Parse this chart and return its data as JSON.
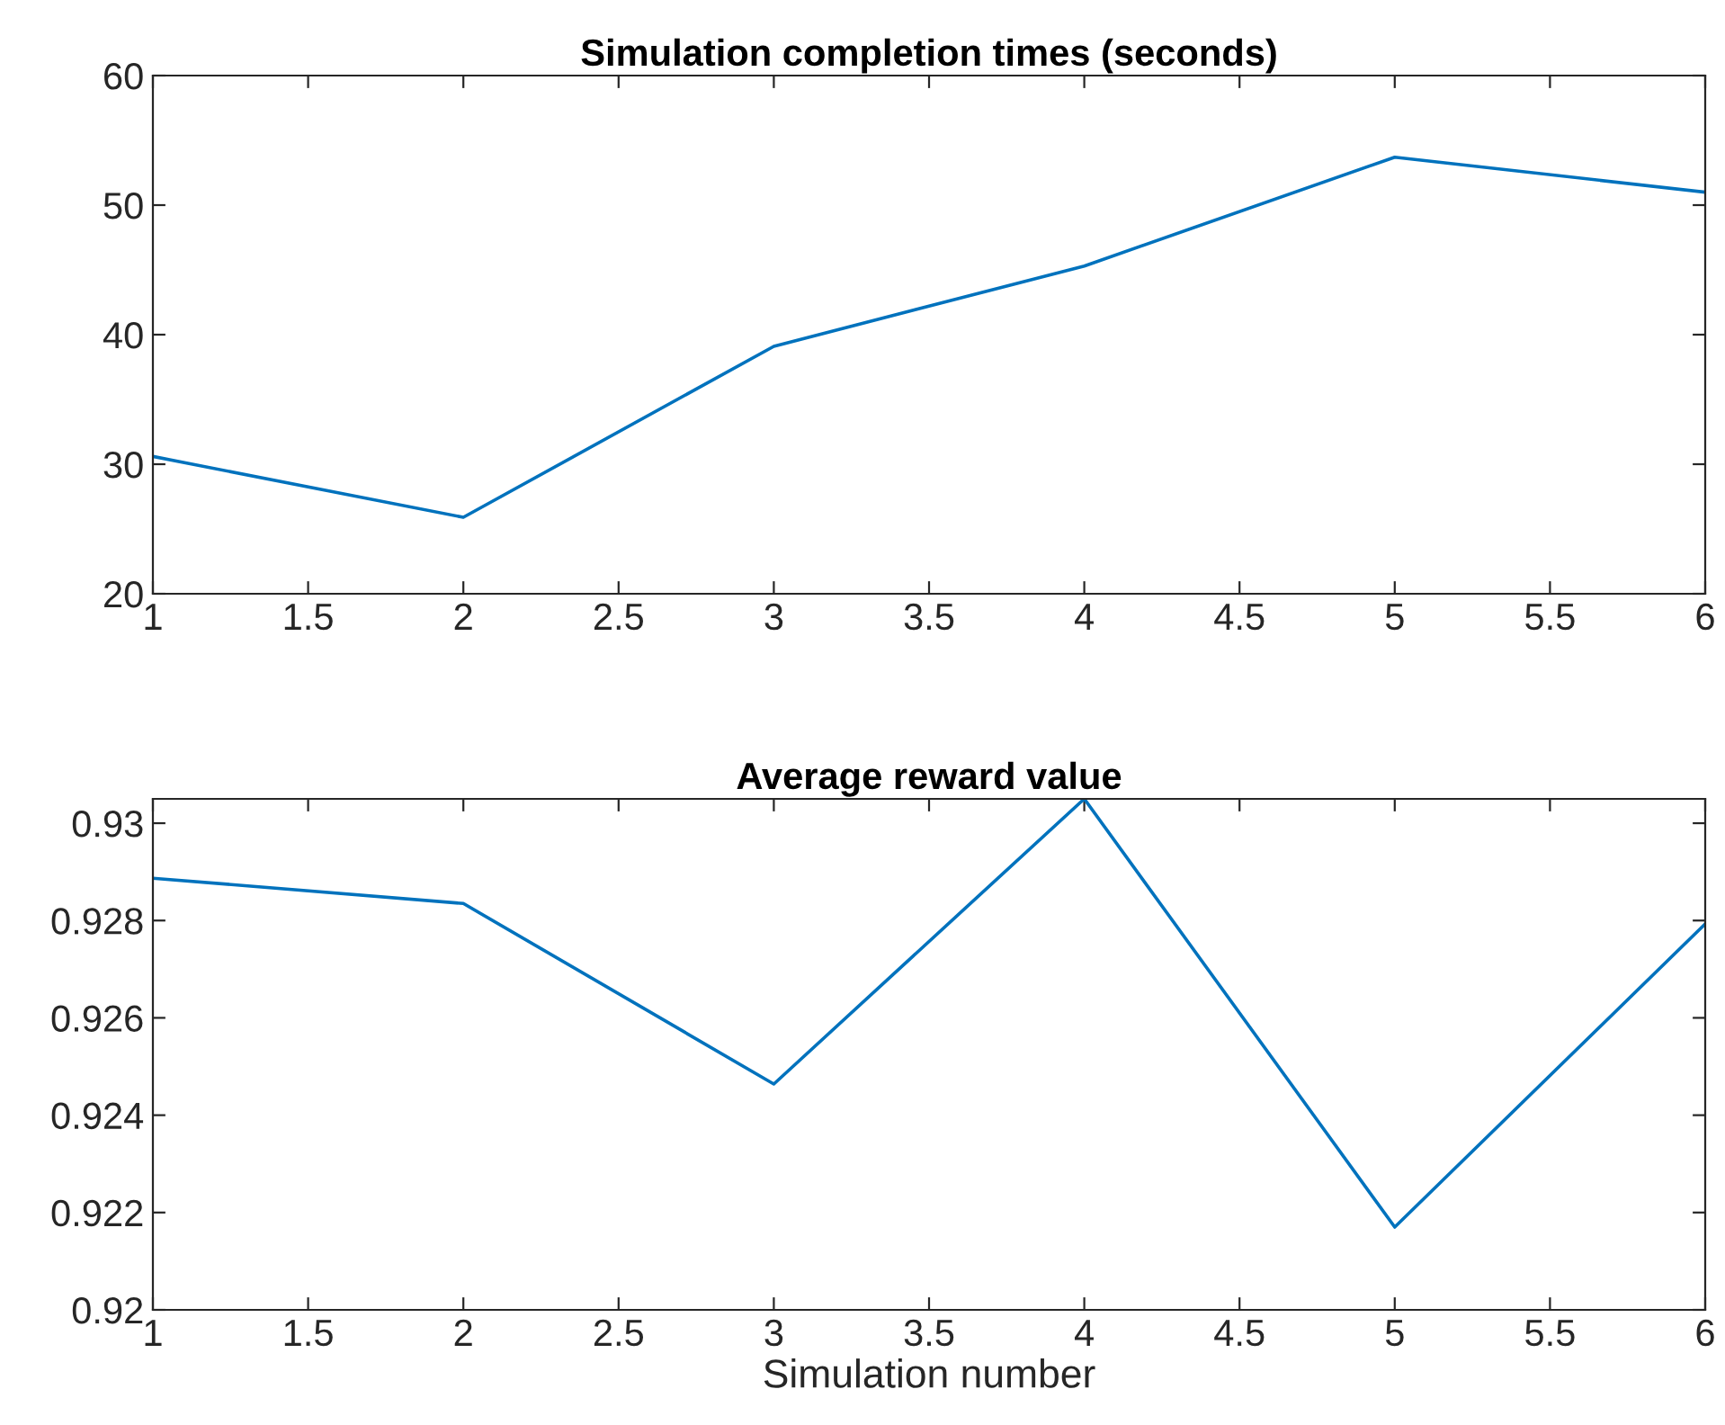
{
  "chart_data": [
    {
      "type": "line",
      "title": "Simulation completion times (seconds)",
      "x": [
        1,
        2,
        3,
        4,
        5,
        6
      ],
      "series": [
        {
          "color": "#0072bd",
          "values": [
            30.6,
            25.9,
            39.1,
            45.3,
            53.7,
            51.0
          ]
        }
      ],
      "xlim": [
        1,
        6
      ],
      "xticks": [
        1,
        1.5,
        2,
        2.5,
        3,
        3.5,
        4,
        4.5,
        5,
        5.5,
        6
      ],
      "ylim": [
        20,
        60
      ],
      "yticks": [
        20,
        30,
        40,
        50,
        60
      ],
      "grid": false,
      "legend": false
    },
    {
      "type": "line",
      "title": "Average reward value",
      "xlabel": "Simulation number",
      "x": [
        1,
        2,
        3,
        4,
        5,
        6
      ],
      "series": [
        {
          "color": "#0072bd",
          "values": [
            0.92887,
            0.92835,
            0.92464,
            0.9305,
            0.9217,
            0.92793
          ]
        }
      ],
      "xlim": [
        1,
        6
      ],
      "xticks": [
        1,
        1.5,
        2,
        2.5,
        3,
        3.5,
        4,
        4.5,
        5,
        5.5,
        6
      ],
      "ylim": [
        0.92,
        0.9305
      ],
      "yticks": [
        0.92,
        0.922,
        0.924,
        0.926,
        0.928,
        0.93
      ],
      "grid": false,
      "legend": false
    }
  ]
}
